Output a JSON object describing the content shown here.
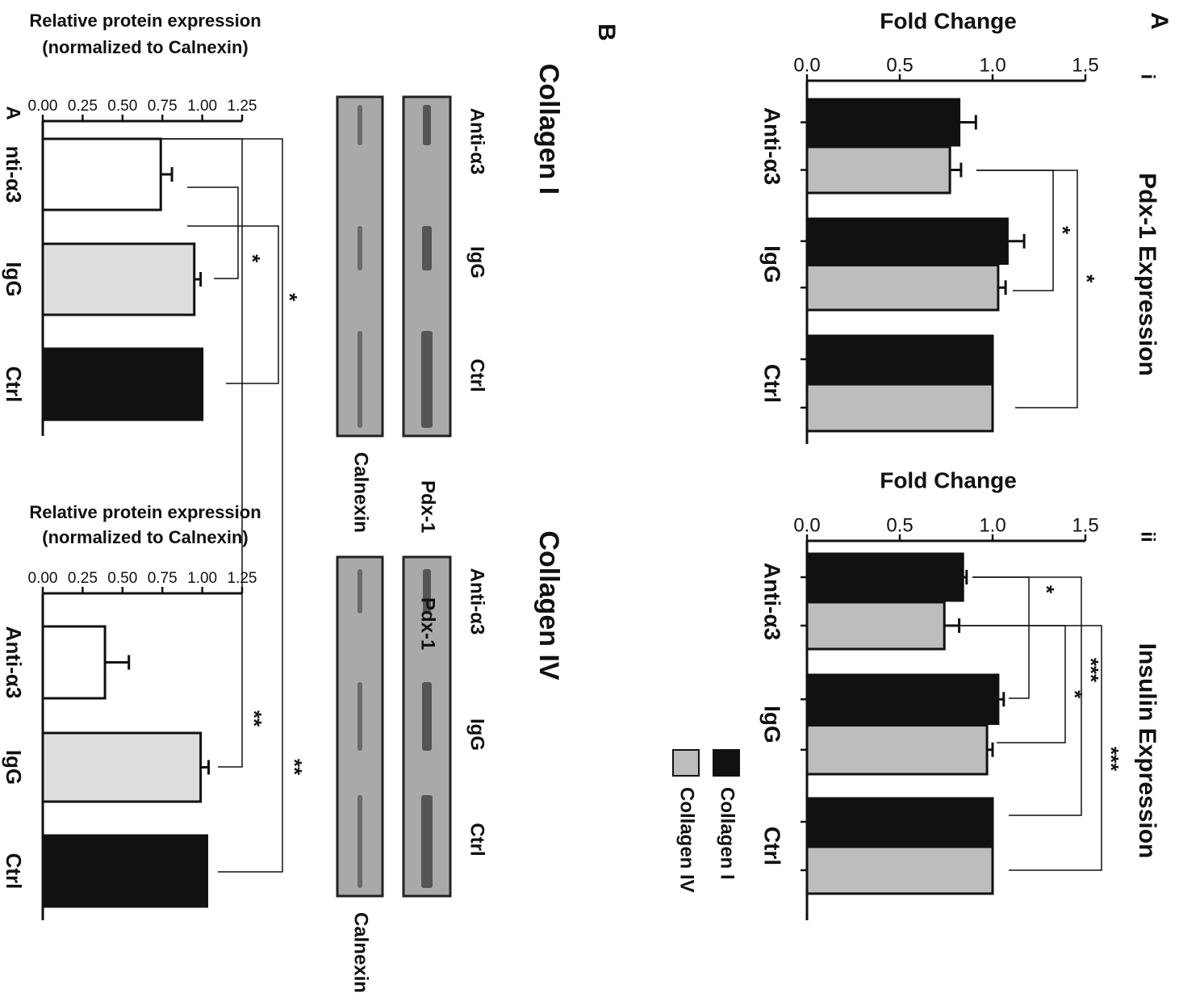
{
  "panel_labels": [
    "A",
    "i",
    "ii",
    "B",
    "A"
  ],
  "chart_data": [
    {
      "type": "bar",
      "title": "Pdx-1 Expression",
      "y_label": "Fold Change",
      "categories": [
        "Anti-α3",
        "IgG",
        "Ctrl"
      ],
      "series": [
        {
          "name": "Collagen I",
          "color": "#111111",
          "values": [
            0.82,
            1.08,
            1.0
          ],
          "errors": [
            0.09,
            0.09,
            0
          ]
        },
        {
          "name": "Collagen IV",
          "color": "#bdbdbd",
          "values": [
            0.77,
            1.03,
            1.0
          ],
          "errors": [
            0.06,
            0.04,
            0
          ]
        }
      ],
      "ylim": [
        0,
        1.5
      ],
      "yticks": [
        {
          "value": 0,
          "label": "0.0"
        },
        0.5,
        {
          "value": 1,
          "label": "1.0"
        },
        1.5
      ],
      "annotations": [
        "*",
        "*"
      ]
    },
    {
      "type": "bar",
      "title": "Insulin Expression",
      "y_label": "Fold Change",
      "categories": [
        "Anti-α3",
        "IgG",
        "Ctrl"
      ],
      "series": [
        {
          "name": "Collagen I",
          "color": "#111111",
          "values": [
            0.84,
            1.03,
            1.0
          ],
          "errors": [
            0.02,
            0.03,
            0
          ]
        },
        {
          "name": "Collagen IV",
          "color": "#bdbdbd",
          "values": [
            0.74,
            0.97,
            1.0
          ],
          "errors": [
            0.08,
            0.03,
            0
          ]
        }
      ],
      "ylim": [
        0,
        1.5
      ],
      "yticks": [
        {
          "value": 0,
          "label": "0.0"
        },
        0.5,
        {
          "value": 1,
          "label": "1.0"
        },
        1.5
      ],
      "legend": "right",
      "annotations": [
        "*",
        "***",
        "*",
        "***"
      ]
    },
    {
      "type": "bar",
      "y_label": [
        "Relative protein expression",
        "(normalized to Calnexin)"
      ],
      "categories": [
        "nti-α3",
        "IgG",
        "Ctrl"
      ],
      "values": [
        0.74,
        0.95,
        1.0
      ],
      "errors": [
        0.07,
        0.04,
        0
      ],
      "colors": [
        "#ffffff",
        "#dedede",
        "#111111"
      ],
      "ylim": [
        0,
        1.25
      ],
      "yticks": [
        {
          "value": 0,
          "label": "0.00"
        },
        0.25,
        {
          "value": 0.5,
          "label": "0.50"
        },
        0.75,
        {
          "value": 1,
          "label": "1.00"
        },
        1.25
      ],
      "annotations": [
        "*",
        "*"
      ]
    },
    {
      "type": "bar",
      "y_label": [
        "Relative protein expression",
        "(normalized to Calnexin)"
      ],
      "categories": [
        "Anti-α3",
        "IgG",
        "Ctrl"
      ],
      "values": [
        0.39,
        0.99,
        1.03
      ],
      "errors": [
        0.15,
        0.05,
        0
      ],
      "colors": [
        "#ffffff",
        "#dedede",
        "#111111"
      ],
      "ylim": [
        0,
        1.25
      ],
      "yticks": [
        {
          "value": 0,
          "label": "0.00"
        },
        0.25,
        {
          "value": 0.5,
          "label": "0.50"
        },
        0.75,
        {
          "value": 1,
          "label": "1.00"
        },
        1.25
      ],
      "annotations": [
        "**",
        "**"
      ]
    }
  ],
  "blots": [
    {
      "title": "Collagen I",
      "lanes": [
        "Anti-α3",
        "IgG",
        "Ctrl"
      ],
      "rows": [
        "Pdx-1",
        "Calnexin"
      ]
    },
    {
      "title": "Collagen IV",
      "lanes": [
        "Anti-α3",
        "IgG",
        "Ctrl"
      ],
      "rows": [
        "Pdx-1",
        "Calnexin"
      ]
    }
  ]
}
